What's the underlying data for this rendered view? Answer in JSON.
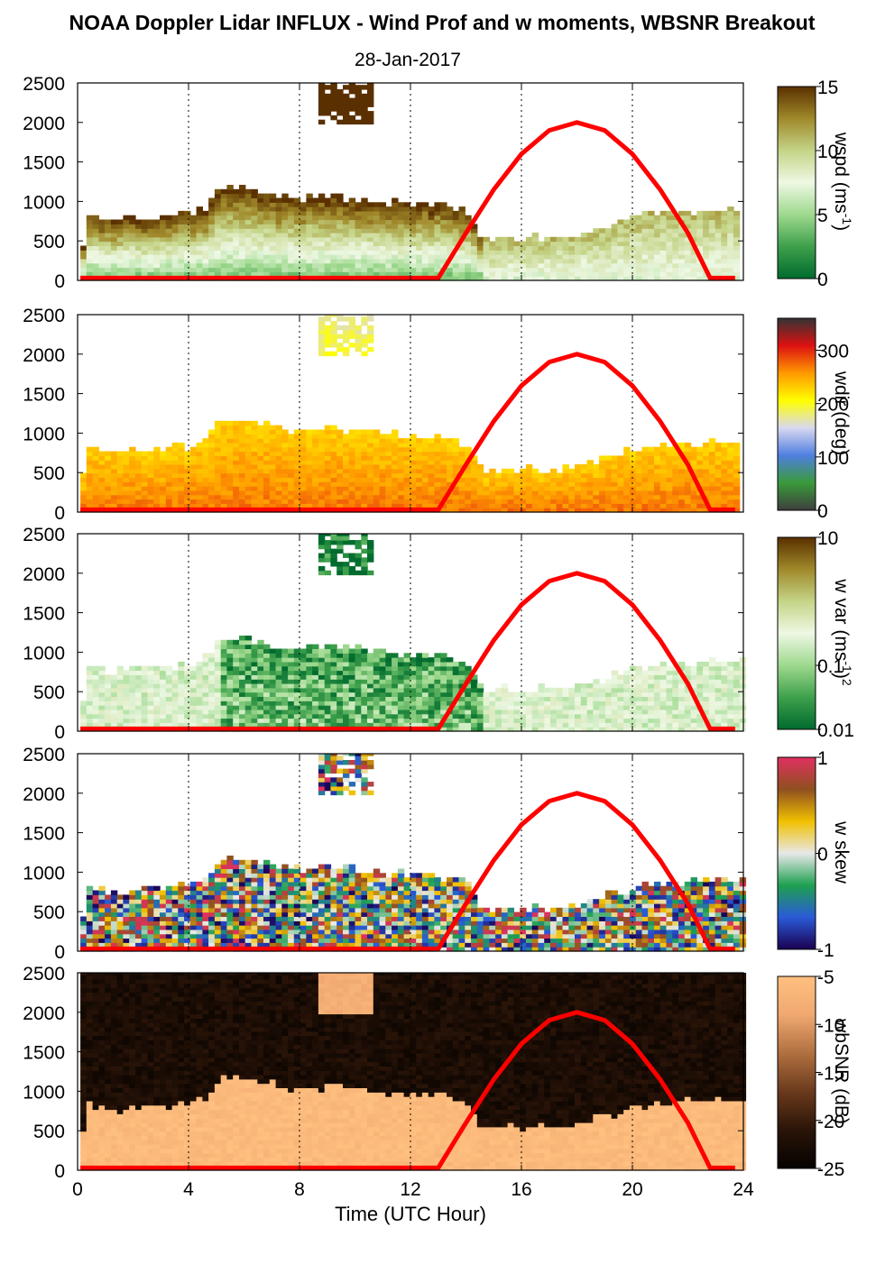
{
  "title": "NOAA Doppler Lidar INFLUX - Wind Prof and w moments, WBSNR Breakout",
  "subtitle": "28-Jan-2017",
  "x_axis": {
    "label": "Time (UTC Hour)",
    "ticks": [
      "0",
      "4",
      "8",
      "12",
      "16",
      "20",
      "24"
    ],
    "range": [
      0,
      24
    ]
  },
  "chart_data": [
    {
      "type": "heatmap",
      "panel": "wspd",
      "colorbar_label": "wspd (ms",
      "colorbar_label_sup": "-1",
      "colorbar_label_end": ")",
      "colorbar_ticks": [
        "15",
        "10",
        "5",
        "0"
      ],
      "crange": [
        0,
        15
      ],
      "colormap": [
        "#006b2e",
        "#3ea04c",
        "#9ed98e",
        "#eef8e4",
        "#c4d487",
        "#a0892a",
        "#5a3000"
      ],
      "y_ticks": [
        "2500",
        "2000",
        "1500",
        "1000",
        "500",
        "0"
      ],
      "ylim": [
        0,
        2500
      ]
    },
    {
      "type": "heatmap",
      "panel": "wdir",
      "colorbar_label": "wdir (deg)",
      "colorbar_ticks": [
        "300",
        "200",
        "100",
        "0"
      ],
      "crange": [
        0,
        360
      ],
      "colormap": [
        "#3e3e3e",
        "#3a9a3a",
        "#4f7fe0",
        "#d8d8f0",
        "#ffff00",
        "#ff9900",
        "#dd1111",
        "#333333"
      ],
      "y_ticks": [
        "2500",
        "2000",
        "1500",
        "1000",
        "500",
        "0"
      ],
      "ylim": [
        0,
        2500
      ]
    },
    {
      "type": "heatmap",
      "panel": "w var",
      "colorbar_label": "w var (ms",
      "colorbar_label_sup": "-1",
      "colorbar_label_end": ")",
      "colorbar_label_sup2": "2",
      "colorbar_ticks": [
        "10",
        "0.1",
        "0.01"
      ],
      "crange": [
        0.01,
        10
      ],
      "colormap": [
        "#006b2e",
        "#3ea04c",
        "#9ed98e",
        "#eef8e4",
        "#c4d487",
        "#a0892a",
        "#5a3000"
      ],
      "y_ticks": [
        "2500",
        "2000",
        "1500",
        "1000",
        "500",
        "0"
      ],
      "ylim": [
        0,
        2500
      ]
    },
    {
      "type": "heatmap",
      "panel": "w skew",
      "colorbar_label": "w skew",
      "colorbar_ticks": [
        "1",
        "0",
        "-1"
      ],
      "crange": [
        -1,
        1
      ],
      "colormap": [
        "#1a0050",
        "#2a5ad8",
        "#1ea050",
        "#e8e8e8",
        "#f0c000",
        "#905020",
        "#e03060"
      ],
      "y_ticks": [
        "2500",
        "2000",
        "1500",
        "1000",
        "500",
        "0"
      ],
      "ylim": [
        0,
        2500
      ]
    },
    {
      "type": "heatmap",
      "panel": "wbSNR",
      "colorbar_label": "wbSNR (dB)",
      "colorbar_ticks": [
        "-5",
        "-10",
        "-15",
        "-20",
        "-25"
      ],
      "crange": [
        -25,
        -5
      ],
      "colormap": [
        "#050200",
        "#2a1408",
        "#6a3a1c",
        "#b07040",
        "#f0a870",
        "#ffc080"
      ],
      "y_ticks": [
        "2500",
        "2000",
        "1500",
        "1000",
        "500",
        "0"
      ],
      "ylim": [
        0,
        2500
      ]
    }
  ],
  "overlay": {
    "type": "line",
    "description_color": "#ff0000",
    "x": [
      0.1,
      13.0,
      14.0,
      15.0,
      16.0,
      17.0,
      18.0,
      19.0,
      20.0,
      21.0,
      22.0,
      22.8,
      23.7
    ],
    "y": [
      30,
      30,
      600,
      1150,
      1600,
      1900,
      2000,
      1900,
      1600,
      1150,
      600,
      30,
      30
    ]
  }
}
